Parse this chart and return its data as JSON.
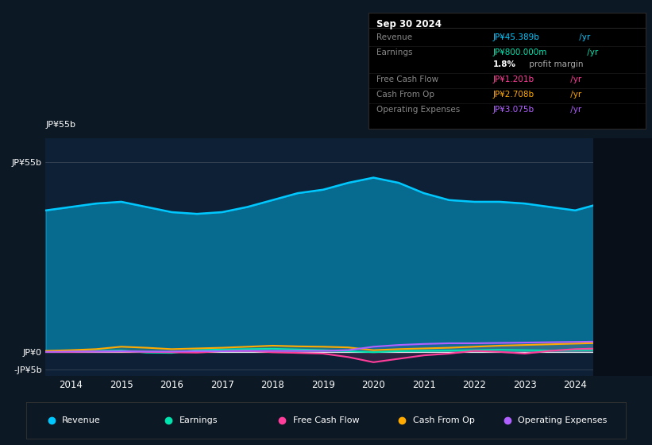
{
  "bg_color": "#0c1824",
  "plot_bg_color": "#0d2035",
  "years": [
    2013.5,
    2014,
    2014.5,
    2015,
    2015.5,
    2016,
    2016.5,
    2017,
    2017.5,
    2018,
    2018.5,
    2019,
    2019.5,
    2020,
    2020.5,
    2021,
    2021.5,
    2022,
    2022.5,
    2023,
    2023.5,
    2024,
    2024.5,
    2024.75
  ],
  "revenue": [
    41,
    42,
    43,
    43.5,
    42,
    40.5,
    40,
    40.5,
    42,
    44,
    46,
    47,
    49,
    50.5,
    49,
    46,
    44,
    43.5,
    43.5,
    43,
    42,
    41,
    43,
    45.389
  ],
  "earnings": [
    0.0,
    0.2,
    0.3,
    0.4,
    -0.2,
    -0.3,
    0.5,
    0.7,
    0.8,
    0.9,
    0.7,
    0.5,
    0.2,
    -0.1,
    0.2,
    0.3,
    0.4,
    0.5,
    0.6,
    0.5,
    0.4,
    0.5,
    0.6,
    0.8
  ],
  "free_cash_flow": [
    0.0,
    0.0,
    0.1,
    0.1,
    0.0,
    -0.1,
    -0.2,
    0.2,
    0.3,
    -0.1,
    -0.3,
    -0.5,
    -1.5,
    -3.0,
    -2.0,
    -1.0,
    -0.5,
    0.3,
    0.0,
    -0.5,
    0.3,
    0.8,
    1.0,
    1.201
  ],
  "cash_from_op": [
    0.3,
    0.5,
    0.8,
    1.5,
    1.2,
    0.8,
    1.0,
    1.2,
    1.5,
    1.8,
    1.6,
    1.5,
    1.3,
    0.5,
    0.8,
    1.0,
    1.2,
    1.5,
    1.8,
    2.0,
    2.2,
    2.4,
    2.6,
    2.708
  ],
  "operating_expenses": [
    0.0,
    0.1,
    0.1,
    0.2,
    0.1,
    0.1,
    0.2,
    0.2,
    0.3,
    0.3,
    0.3,
    0.3,
    0.5,
    1.5,
    2.0,
    2.3,
    2.5,
    2.5,
    2.6,
    2.7,
    2.8,
    2.9,
    3.0,
    3.075
  ],
  "revenue_color": "#00c8ff",
  "earnings_color": "#00e5b0",
  "free_cash_flow_color": "#ff3d9a",
  "cash_from_op_color": "#ffaa00",
  "operating_expenses_color": "#b060ff",
  "ylim": [
    -7,
    62
  ],
  "yticks": [
    -5,
    0,
    55
  ],
  "ytick_labels": [
    "-JP¥5b",
    "JP¥0",
    "JP¥55b"
  ],
  "xticks": [
    2014,
    2015,
    2016,
    2017,
    2018,
    2019,
    2020,
    2021,
    2022,
    2023,
    2024
  ],
  "info_title": "Sep 30 2024",
  "info_rows": [
    {
      "label": "Revenue",
      "value": "JP¥45.389b",
      "suffix": " /yr",
      "value_color": "#00c8ff",
      "has_sep": true,
      "bold_value": false
    },
    {
      "label": "Earnings",
      "value": "JP¥800.000m",
      "suffix": " /yr",
      "value_color": "#00e5b0",
      "has_sep": false,
      "bold_value": false
    },
    {
      "label": "",
      "value": "1.8%",
      "suffix": " profit margin",
      "value_color": "#ffffff",
      "suffix_color": "#aaaaaa",
      "has_sep": true,
      "bold_value": true
    },
    {
      "label": "Free Cash Flow",
      "value": "JP¥1.201b",
      "suffix": " /yr",
      "value_color": "#ff3d9a",
      "has_sep": true,
      "bold_value": false
    },
    {
      "label": "Cash From Op",
      "value": "JP¥2.708b",
      "suffix": " /yr",
      "value_color": "#ffaa00",
      "has_sep": true,
      "bold_value": false
    },
    {
      "label": "Operating Expenses",
      "value": "JP¥3.075b",
      "suffix": " /yr",
      "value_color": "#b060ff",
      "has_sep": false,
      "bold_value": false
    }
  ],
  "legend_items": [
    {
      "label": "Revenue",
      "color": "#00c8ff"
    },
    {
      "label": "Earnings",
      "color": "#00e5b0"
    },
    {
      "label": "Free Cash Flow",
      "color": "#ff3d9a"
    },
    {
      "label": "Cash From Op",
      "color": "#ffaa00"
    },
    {
      "label": "Operating Expenses",
      "color": "#b060ff"
    }
  ]
}
